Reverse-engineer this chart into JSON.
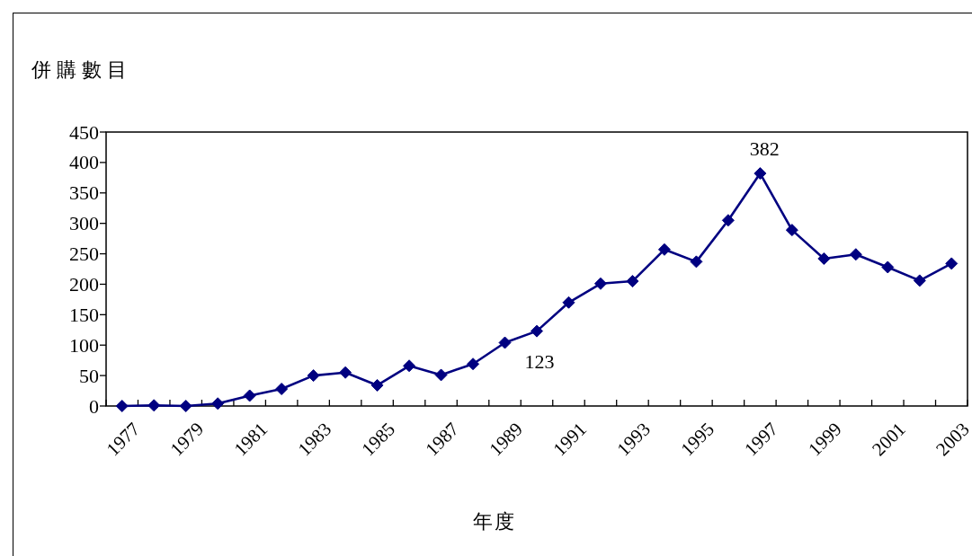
{
  "chart_data": {
    "type": "line",
    "ylabel": "併購數目",
    "xlabel": "年度",
    "categories": [
      "1977",
      null,
      "1979",
      null,
      "1981",
      null,
      "1983",
      null,
      "1985",
      null,
      "1987",
      null,
      "1989",
      null,
      "1991",
      null,
      "1993",
      null,
      "1995",
      null,
      "1997",
      null,
      "1999",
      null,
      "2001",
      null,
      "2003"
    ],
    "series": [
      {
        "color": "#000080",
        "values": [
          0,
          1,
          0,
          4,
          17,
          28,
          50,
          55,
          34,
          66,
          51,
          69,
          104,
          123,
          170,
          201,
          205,
          257,
          237,
          305,
          382,
          289,
          242,
          249,
          228,
          206,
          234
        ],
        "value_labels": [
          null,
          null,
          null,
          null,
          null,
          null,
          null,
          null,
          null,
          null,
          null,
          null,
          null,
          "123",
          null,
          null,
          null,
          null,
          null,
          null,
          "382",
          null,
          null,
          null,
          null,
          null,
          null
        ]
      }
    ],
    "ylim": [
      0,
      450
    ],
    "yticks": [
      0,
      50,
      100,
      150,
      200,
      250,
      300,
      350,
      400,
      450
    ],
    "marker": "diamond",
    "line_style": "solid",
    "grid": false,
    "legend": false
  }
}
